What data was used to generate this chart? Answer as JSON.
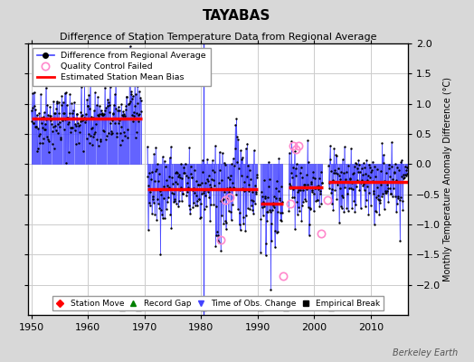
{
  "title": "TAYABAS",
  "subtitle": "Difference of Station Temperature Data from Regional Average",
  "ylabel": "Monthly Temperature Anomaly Difference (°C)",
  "xlim": [
    1949.5,
    2016.5
  ],
  "ylim": [
    -2.5,
    2.0
  ],
  "yticks": [
    -2.0,
    -1.5,
    -1.0,
    -0.5,
    0.0,
    0.5,
    1.0,
    1.5,
    2.0
  ],
  "xticks": [
    1950,
    1960,
    1970,
    1980,
    1990,
    2000,
    2010
  ],
  "bg_color": "#d8d8d8",
  "plot_bg_color": "#ffffff",
  "grid_color": "#cccccc",
  "line_color": "#4444ff",
  "dot_color": "black",
  "bias_color": "red",
  "watermark": "Berkeley Earth",
  "empirical_breaks_x": [
    1966.0,
    1969.0,
    1980.5,
    1990.5,
    1995.0,
    2003.0
  ],
  "time_of_obs_change_x": [
    1980.5
  ],
  "segment_biases": [
    {
      "x_start": 1950.0,
      "x_end": 1969.5,
      "bias": 0.75
    },
    {
      "x_start": 1970.5,
      "x_end": 1990.0,
      "bias": -0.42
    },
    {
      "x_start": 1990.5,
      "x_end": 1994.5,
      "bias": -0.65
    },
    {
      "x_start": 1995.5,
      "x_end": 2001.5,
      "bias": -0.38
    },
    {
      "x_start": 2002.5,
      "x_end": 2016.5,
      "bias": -0.3
    }
  ],
  "seed": 42
}
